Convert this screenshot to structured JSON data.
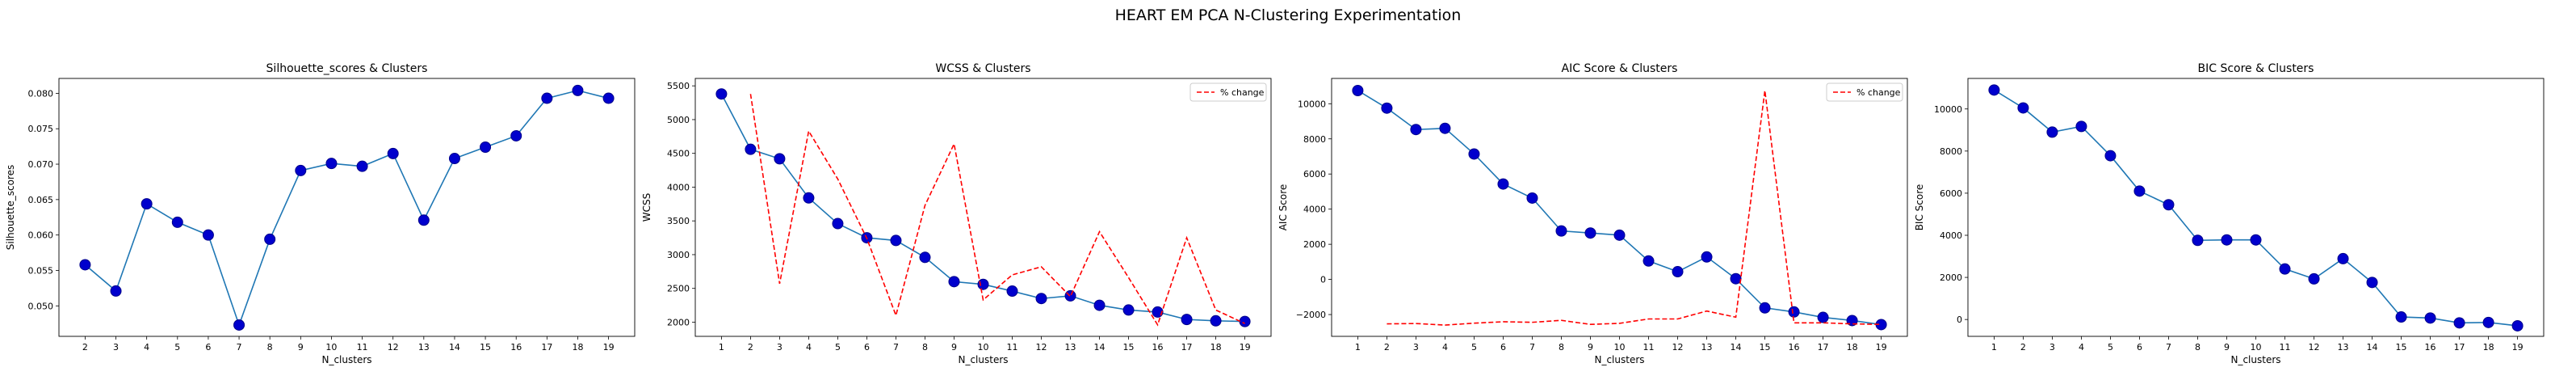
{
  "figure": {
    "title": "HEART EM PCA N-Clustering Experimentation"
  },
  "colors": {
    "line": "#1f77b4",
    "marker_face": "#0000cd",
    "marker_edge": "#00008b",
    "pct_change": "#ff0000"
  },
  "chart_data": [
    {
      "type": "line",
      "title": "Silhouette_scores & Clusters",
      "xlabel": "N_clusters",
      "ylabel": "Silhouette_scores",
      "x": [
        2,
        3,
        4,
        5,
        6,
        7,
        8,
        9,
        10,
        11,
        12,
        13,
        14,
        15,
        16,
        17,
        18,
        19
      ],
      "series": [
        {
          "values": [
            0.0558,
            0.0521,
            0.0644,
            0.0618,
            0.06,
            0.0473,
            0.0594,
            0.0691,
            0.0701,
            0.0697,
            0.0715,
            0.0621,
            0.0708,
            0.0724,
            0.074,
            0.0793,
            0.0804,
            0.0793
          ]
        }
      ],
      "xticks": [
        "2",
        "3",
        "4",
        "5",
        "6",
        "7",
        "8",
        "9",
        "10",
        "11",
        "12",
        "13",
        "14",
        "15",
        "16",
        "17",
        "18",
        "19"
      ],
      "xlim": [
        1.15,
        19.85
      ],
      "yticks": [
        0.05,
        0.055,
        0.06,
        0.065,
        0.07,
        0.075,
        0.08
      ],
      "ytick_labels": [
        "0.050",
        "0.055",
        "0.060",
        "0.065",
        "0.070",
        "0.075",
        "0.080"
      ],
      "ylim": [
        0.0457,
        0.0821
      ],
      "grid": false
    },
    {
      "type": "line",
      "title": "WCSS & Clusters",
      "xlabel": "N_clusters",
      "ylabel": "WCSS",
      "x": [
        1,
        2,
        3,
        4,
        5,
        6,
        7,
        8,
        9,
        10,
        11,
        12,
        13,
        14,
        15,
        16,
        17,
        18,
        19
      ],
      "series": [
        {
          "values": [
            5380,
            4560,
            4420,
            3840,
            3460,
            3250,
            3210,
            2960,
            2600,
            2560,
            2460,
            2350,
            2390,
            2250,
            2180,
            2150,
            2040,
            2020,
            2010
          ]
        },
        {
          "name": "% change",
          "style": "dashed",
          "x": [
            2,
            3,
            4,
            5,
            6,
            7,
            8,
            9,
            10,
            11,
            12,
            13,
            14,
            15,
            16,
            17,
            18,
            19
          ],
          "values": [
            5380,
            2570,
            4830,
            4120,
            3240,
            2100,
            3730,
            4640,
            2330,
            2700,
            2820,
            2380,
            3340,
            2660,
            1960,
            3250,
            2180,
            1980
          ]
        }
      ],
      "xticks": [
        "1",
        "2",
        "3",
        "4",
        "5",
        "6",
        "7",
        "8",
        "9",
        "10",
        "11",
        "12",
        "13",
        "14",
        "15",
        "16",
        "17",
        "18",
        "19"
      ],
      "xlim": [
        0.1,
        19.9
      ],
      "yticks": [
        2000,
        2500,
        3000,
        3500,
        4000,
        4500,
        5000,
        5500
      ],
      "ytick_labels": [
        "2000",
        "2500",
        "3000",
        "3500",
        "4000",
        "4500",
        "5000",
        "5500"
      ],
      "ylim": [
        1790,
        5610
      ],
      "grid": false,
      "legend": "top-right"
    },
    {
      "type": "line",
      "title": "AIC Score & Clusters",
      "xlabel": "N_clusters",
      "ylabel": "AIC Score",
      "x": [
        1,
        2,
        3,
        4,
        5,
        6,
        7,
        8,
        9,
        10,
        11,
        12,
        13,
        14,
        15,
        16,
        17,
        18,
        19
      ],
      "series": [
        {
          "values": [
            10750,
            9750,
            8530,
            8600,
            7140,
            5430,
            4630,
            2760,
            2640,
            2520,
            1050,
            440,
            1280,
            40,
            -1620,
            -1850,
            -2160,
            -2340,
            -2570
          ]
        },
        {
          "name": "% change",
          "style": "dashed",
          "x": [
            2,
            3,
            4,
            5,
            6,
            7,
            8,
            9,
            10,
            11,
            12,
            13,
            14,
            15,
            16,
            17,
            18,
            19
          ],
          "values": [
            -2530,
            -2510,
            -2600,
            -2490,
            -2410,
            -2440,
            -2330,
            -2560,
            -2500,
            -2250,
            -2250,
            -1800,
            -2150,
            10750,
            -2470,
            -2470,
            -2530,
            -2560
          ]
        }
      ],
      "xticks": [
        "1",
        "2",
        "3",
        "4",
        "5",
        "6",
        "7",
        "8",
        "9",
        "10",
        "11",
        "12",
        "13",
        "14",
        "15",
        "16",
        "17",
        "18",
        "19"
      ],
      "xlim": [
        0.1,
        19.9
      ],
      "yticks": [
        -2000,
        0,
        2000,
        4000,
        6000,
        8000,
        10000
      ],
      "ytick_labels": [
        "−2000",
        "0",
        "2000",
        "4000",
        "6000",
        "8000",
        "10000"
      ],
      "ylim": [
        -3240,
        11440
      ],
      "grid": false,
      "legend": "top-right"
    },
    {
      "type": "line",
      "title": "BIC Score & Clusters",
      "xlabel": "N_clusters",
      "ylabel": "BIC Score",
      "x": [
        1,
        2,
        3,
        4,
        5,
        6,
        7,
        8,
        9,
        10,
        11,
        12,
        13,
        14,
        15,
        16,
        17,
        18,
        19
      ],
      "series": [
        {
          "values": [
            10900,
            10050,
            8900,
            9170,
            7780,
            6100,
            5450,
            3760,
            3780,
            3780,
            2400,
            1930,
            2890,
            1760,
            120,
            70,
            -160,
            -140,
            -300
          ]
        }
      ],
      "xticks": [
        "1",
        "2",
        "3",
        "4",
        "5",
        "6",
        "7",
        "8",
        "9",
        "10",
        "11",
        "12",
        "13",
        "14",
        "15",
        "16",
        "17",
        "18",
        "19"
      ],
      "xlim": [
        0.1,
        19.9
      ],
      "yticks": [
        0,
        2000,
        4000,
        6000,
        8000,
        10000
      ],
      "ytick_labels": [
        "0",
        "2000",
        "4000",
        "6000",
        "8000",
        "10000"
      ],
      "ylim": [
        -800,
        11450
      ],
      "grid": false
    }
  ]
}
